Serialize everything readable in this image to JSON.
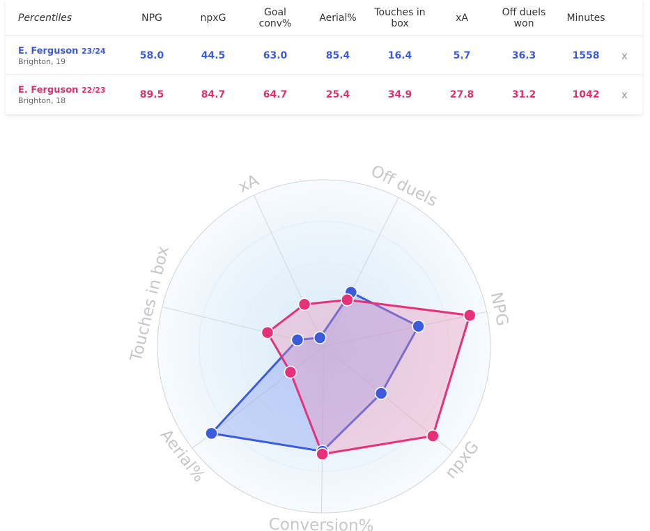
{
  "table": {
    "header": {
      "first": "Percentiles",
      "columns": [
        "NPG",
        "npxG",
        "Goal conv%",
        "Aerial%",
        "Touches in box",
        "xA",
        "Off duels won",
        "Minutes"
      ]
    },
    "rows": [
      {
        "name": "E. Ferguson",
        "season": "23/24",
        "club": "Brighton, 19",
        "color": "#3b5bdb",
        "values": [
          "58.0",
          "44.5",
          "63.0",
          "85.4",
          "16.4",
          "5.7",
          "36.3",
          "1558"
        ],
        "remove": "x"
      },
      {
        "name": "E. Ferguson",
        "season": "22/23",
        "club": "Brighton, 18",
        "color": "#e0306f",
        "values": [
          "89.5",
          "84.7",
          "64.7",
          "25.4",
          "34.9",
          "27.8",
          "31.2",
          "1042"
        ],
        "remove": "x"
      }
    ]
  },
  "chart_data": {
    "type": "radar",
    "axes": [
      "NPG",
      "npxG",
      "Conversion%",
      "Aerial%",
      "Touches in box",
      "xA",
      "Off duels"
    ],
    "range": [
      0,
      100
    ],
    "series": [
      {
        "name": "E. Ferguson 23/24",
        "color": "#3b5bdb",
        "fill": "#7b96f0",
        "values": [
          58.0,
          44.5,
          63.0,
          85.4,
          16.4,
          5.7,
          36.3
        ]
      },
      {
        "name": "E. Ferguson 22/23",
        "color": "#e6307a",
        "fill": "#f08cb4",
        "values": [
          89.5,
          84.7,
          64.7,
          25.4,
          34.9,
          27.8,
          31.2
        ]
      }
    ]
  }
}
